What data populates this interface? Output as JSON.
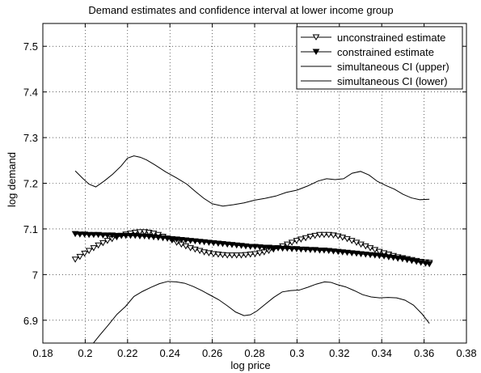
{
  "chart_data": {
    "type": "line",
    "title": "Demand estimates and confidence interval at lower income group",
    "xlabel": "log price",
    "ylabel": "log demand",
    "xlim": [
      0.18,
      0.38
    ],
    "ylim": [
      6.85,
      7.55
    ],
    "xticks": [
      "0.18",
      "0.2",
      "0.22",
      "0.24",
      "0.26",
      "0.28",
      "0.3",
      "0.32",
      "0.34",
      "0.36",
      "0.38"
    ],
    "yticks": [
      "6.9",
      "7",
      "7.1",
      "7.2",
      "7.3",
      "7.4",
      "7.5"
    ],
    "grid": true,
    "legend_position": "top-right",
    "series": [
      {
        "name": "unconstrained estimate",
        "marker": "triangle-down-open",
        "x": [
          0.1953,
          0.1975,
          0.1997,
          0.2018,
          0.204,
          0.2062,
          0.2084,
          0.2105,
          0.2127,
          0.2149,
          0.2171,
          0.2192,
          0.2214,
          0.2236,
          0.2258,
          0.228,
          0.2301,
          0.2323,
          0.2345,
          0.2367,
          0.2388,
          0.241,
          0.2432,
          0.2454,
          0.2475,
          0.2497,
          0.2519,
          0.2541,
          0.2562,
          0.2584,
          0.2606,
          0.2628,
          0.2649,
          0.2671,
          0.2693,
          0.2715,
          0.2737,
          0.2758,
          0.278,
          0.2802,
          0.2824,
          0.2845,
          0.2867,
          0.2889,
          0.2911,
          0.2932,
          0.2954,
          0.2976,
          0.2998,
          0.3019,
          0.3041,
          0.3063,
          0.3085,
          0.3107,
          0.3128,
          0.315,
          0.3172,
          0.3194,
          0.3215,
          0.3237,
          0.3259,
          0.3281,
          0.3302,
          0.3324,
          0.3346,
          0.3368,
          0.3389,
          0.3411,
          0.3433,
          0.3455,
          0.3476,
          0.3498,
          0.352,
          0.3542,
          0.3564,
          0.3585,
          0.3607,
          0.3625
        ],
        "y": [
          7.033,
          7.039,
          7.046,
          7.052,
          7.058,
          7.064,
          7.069,
          7.074,
          7.078,
          7.082,
          7.085,
          7.088,
          7.09,
          7.092,
          7.093,
          7.093,
          7.092,
          7.09,
          7.087,
          7.083,
          7.079,
          7.075,
          7.07,
          7.066,
          7.062,
          7.058,
          7.055,
          7.052,
          7.049,
          7.047,
          7.045,
          7.044,
          7.043,
          7.042,
          7.042,
          7.042,
          7.042,
          7.043,
          7.044,
          7.045,
          7.047,
          7.049,
          7.052,
          7.055,
          7.058,
          7.062,
          7.066,
          7.07,
          7.074,
          7.077,
          7.08,
          7.083,
          7.085,
          7.087,
          7.087,
          7.087,
          7.086,
          7.084,
          7.081,
          7.078,
          7.074,
          7.07,
          7.066,
          7.062,
          7.058,
          7.054,
          7.05,
          7.047,
          7.044,
          7.041,
          7.038,
          7.036,
          7.034,
          7.032,
          7.03,
          7.028,
          7.027,
          7.026
        ]
      },
      {
        "name": "constrained estimate",
        "marker": "triangle-down-filled",
        "x": [
          0.1953,
          0.1975,
          0.1997,
          0.2018,
          0.204,
          0.2062,
          0.2084,
          0.2105,
          0.2127,
          0.2149,
          0.2171,
          0.2192,
          0.2214,
          0.2236,
          0.2258,
          0.228,
          0.2301,
          0.2323,
          0.2345,
          0.2367,
          0.2388,
          0.241,
          0.2432,
          0.2454,
          0.2475,
          0.2497,
          0.2519,
          0.2541,
          0.2562,
          0.2584,
          0.2606,
          0.2628,
          0.2649,
          0.2671,
          0.2693,
          0.2715,
          0.2737,
          0.2758,
          0.278,
          0.2802,
          0.2824,
          0.2845,
          0.2867,
          0.2889,
          0.2911,
          0.2932,
          0.2954,
          0.2976,
          0.2998,
          0.3019,
          0.3041,
          0.3063,
          0.3085,
          0.3107,
          0.3128,
          0.315,
          0.3172,
          0.3194,
          0.3215,
          0.3237,
          0.3259,
          0.3281,
          0.3302,
          0.3324,
          0.3346,
          0.3368,
          0.3389,
          0.3411,
          0.3433,
          0.3455,
          0.3476,
          0.3498,
          0.352,
          0.3542,
          0.3564,
          0.3585,
          0.3607,
          0.3625
        ],
        "y": [
          7.089,
          7.088,
          7.088,
          7.087,
          7.087,
          7.087,
          7.086,
          7.086,
          7.086,
          7.085,
          7.085,
          7.085,
          7.085,
          7.085,
          7.084,
          7.084,
          7.083,
          7.082,
          7.081,
          7.08,
          7.079,
          7.078,
          7.077,
          7.076,
          7.075,
          7.074,
          7.073,
          7.072,
          7.071,
          7.07,
          7.069,
          7.068,
          7.067,
          7.066,
          7.065,
          7.064,
          7.063,
          7.062,
          7.061,
          7.061,
          7.06,
          7.059,
          7.059,
          7.058,
          7.058,
          7.057,
          7.057,
          7.056,
          7.056,
          7.055,
          7.055,
          7.054,
          7.054,
          7.053,
          7.053,
          7.052,
          7.051,
          7.05,
          7.049,
          7.048,
          7.047,
          7.046,
          7.045,
          7.044,
          7.043,
          7.042,
          7.041,
          7.04,
          7.038,
          7.037,
          7.035,
          7.034,
          7.032,
          7.03,
          7.028,
          7.026,
          7.024,
          7.023
        ]
      },
      {
        "name": "simultaneous CI (upper)",
        "marker": "none",
        "x": [
          0.1953,
          0.199,
          0.2018,
          0.205,
          0.209,
          0.213,
          0.217,
          0.22,
          0.223,
          0.226,
          0.229,
          0.233,
          0.238,
          0.243,
          0.248,
          0.252,
          0.256,
          0.26,
          0.265,
          0.27,
          0.275,
          0.28,
          0.285,
          0.29,
          0.295,
          0.3,
          0.305,
          0.31,
          0.314,
          0.318,
          0.322,
          0.326,
          0.33,
          0.334,
          0.338,
          0.342,
          0.346,
          0.35,
          0.354,
          0.358,
          0.3625
        ],
        "y": [
          7.227,
          7.21,
          7.198,
          7.192,
          7.205,
          7.22,
          7.238,
          7.255,
          7.26,
          7.257,
          7.251,
          7.24,
          7.225,
          7.212,
          7.198,
          7.182,
          7.167,
          7.155,
          7.15,
          7.153,
          7.157,
          7.163,
          7.167,
          7.172,
          7.18,
          7.185,
          7.194,
          7.205,
          7.21,
          7.208,
          7.21,
          7.222,
          7.226,
          7.218,
          7.204,
          7.195,
          7.187,
          7.176,
          7.168,
          7.164,
          7.165
        ]
      },
      {
        "name": "simultaneous CI (lower)",
        "marker": "none",
        "x": [
          0.203,
          0.207,
          0.211,
          0.215,
          0.219,
          0.223,
          0.227,
          0.231,
          0.235,
          0.239,
          0.243,
          0.247,
          0.251,
          0.255,
          0.259,
          0.263,
          0.267,
          0.271,
          0.275,
          0.278,
          0.281,
          0.285,
          0.289,
          0.293,
          0.297,
          0.301,
          0.305,
          0.309,
          0.313,
          0.316,
          0.319,
          0.323,
          0.327,
          0.331,
          0.335,
          0.339,
          0.343,
          0.347,
          0.351,
          0.355,
          0.359,
          0.3625
        ],
        "y": [
          6.845,
          6.868,
          6.89,
          6.913,
          6.93,
          6.952,
          6.963,
          6.972,
          6.98,
          6.985,
          6.984,
          6.981,
          6.974,
          6.965,
          6.955,
          6.945,
          6.932,
          6.918,
          6.91,
          6.912,
          6.92,
          6.935,
          6.95,
          6.962,
          6.965,
          6.966,
          6.972,
          6.979,
          6.984,
          6.983,
          6.978,
          6.973,
          6.965,
          6.956,
          6.951,
          6.949,
          6.95,
          6.949,
          6.944,
          6.933,
          6.914,
          6.893
        ]
      }
    ]
  }
}
